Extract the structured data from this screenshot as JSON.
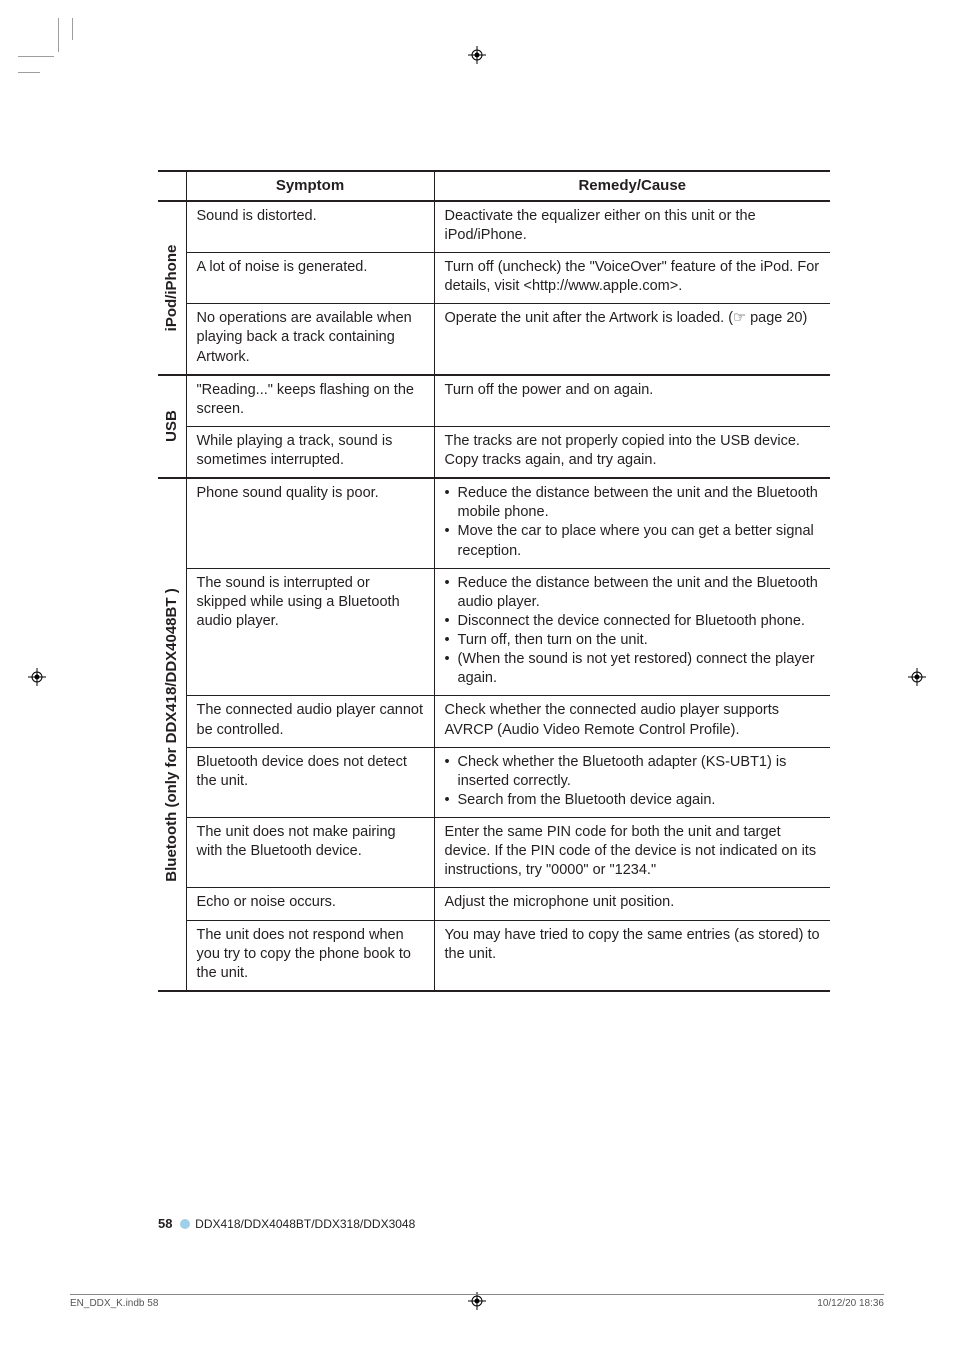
{
  "headers": {
    "symptom": "Symptom",
    "remedy": "Remedy/Cause"
  },
  "groups": [
    {
      "label": "iPod/iPhone",
      "rows": [
        {
          "s": "Sound is distorted.",
          "r": "Deactivate the equalizer either on this unit or the iPod/iPhone."
        },
        {
          "s": "A lot of noise is generated.",
          "r": "Turn off (uncheck) the \"VoiceOver\" feature of the iPod. For details, visit <http://www.apple.com>."
        },
        {
          "s": "No operations are available when playing back a track containing Artwork.",
          "r": "Operate the unit after the Artwork is loaded. (☞ page 20)"
        }
      ]
    },
    {
      "label": "USB",
      "rows": [
        {
          "s": "\"Reading...\" keeps flashing on the screen.",
          "r": "Turn off the power and on again."
        },
        {
          "s": "While playing a track, sound is sometimes interrupted.",
          "r": "The tracks are not properly copied into the USB device. Copy tracks again, and try again."
        }
      ]
    },
    {
      "label": "Bluetooth (only for DDX418/DDX4048BT )",
      "rows": [
        {
          "s": "Phone sound quality is poor.",
          "r_li": [
            "Reduce the distance between the unit and the Bluetooth mobile phone.",
            "Move the car to place where you can get a better signal reception."
          ]
        },
        {
          "s": "The sound is interrupted or skipped while using a Bluetooth audio player.",
          "r_li": [
            "Reduce the distance between the unit and the Bluetooth audio player.",
            "Disconnect the device connected for Bluetooth phone.",
            "Turn off, then turn on the unit.",
            "(When the sound is not yet restored) connect the player again."
          ]
        },
        {
          "s": "The connected audio player cannot be controlled.",
          "r": "Check whether the connected audio player supports AVRCP (Audio Video Remote Control Profile)."
        },
        {
          "s": "Bluetooth device does not detect the unit.",
          "r_li": [
            "Check whether the Bluetooth adapter (KS-UBT1) is inserted correctly.",
            "Search from the Bluetooth device again."
          ]
        },
        {
          "s": "The unit does not make pairing with the Bluetooth device.",
          "r": "Enter the same PIN code for both the unit and target device. If the PIN code of the device is not indicated on its  instructions, try \"0000\" or \"1234.\""
        },
        {
          "s": "Echo or noise occurs.",
          "r": "Adjust the microphone unit position."
        },
        {
          "s": "The unit does not respond when you try to copy the phone book to the unit.",
          "r": "You may have tried to copy the same entries (as stored) to the unit."
        }
      ]
    }
  ],
  "footer": {
    "page": "58",
    "model": "DDX418/DDX4048BT/DDX318/DDX3048"
  },
  "printline": {
    "left": "EN_DDX_K.indb   58",
    "right": "10/12/20   18:36"
  }
}
